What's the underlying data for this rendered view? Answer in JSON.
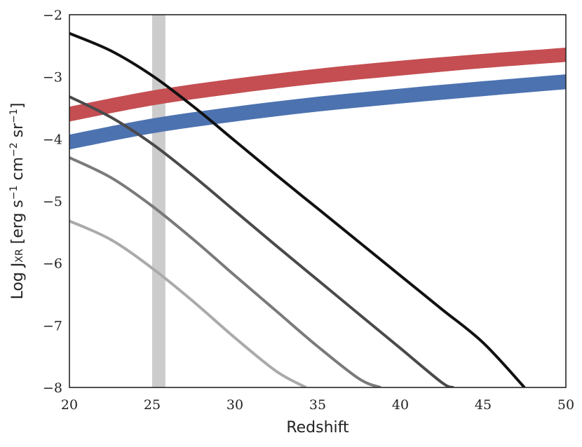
{
  "chart_data": {
    "type": "line",
    "title": "",
    "xlabel": "Redshift",
    "ylabel": {
      "prefix": "Log J",
      "sub": "XR",
      "units": " [erg s",
      "e1": "−1",
      "mid1": " cm",
      "e2": "−2",
      "mid2": " sr",
      "e3": "−1",
      "close": "]"
    },
    "xlim": [
      20,
      50
    ],
    "ylim": [
      -8,
      -2
    ],
    "xticks": [
      20,
      25,
      30,
      35,
      40,
      45,
      50
    ],
    "xtick_labels": [
      "20",
      "25",
      "30",
      "35",
      "40",
      "45",
      "50"
    ],
    "yticks": [
      -8,
      -7,
      -6,
      -5,
      -4,
      -3,
      -2
    ],
    "ytick_labels": [
      "−8",
      "−7",
      "−6",
      "−5",
      "−4",
      "−3",
      "−2"
    ],
    "grid": false,
    "shaded_region": {
      "x": [
        25.0,
        25.8
      ],
      "color": "#cccccc"
    },
    "bands": [
      {
        "color": "#c44e52",
        "x": [
          20,
          25,
          30,
          35,
          40,
          45,
          50
        ],
        "upper": [
          -3.48,
          -3.22,
          -3.03,
          -2.87,
          -2.74,
          -2.63,
          -2.53
        ],
        "lower": [
          -3.72,
          -3.46,
          -3.27,
          -3.11,
          -2.98,
          -2.86,
          -2.76
        ]
      },
      {
        "color": "#4c72b0",
        "x": [
          20,
          25,
          30,
          35,
          40,
          45,
          50
        ],
        "upper": [
          -3.93,
          -3.67,
          -3.48,
          -3.32,
          -3.19,
          -3.07,
          -2.96
        ],
        "lower": [
          -4.17,
          -3.91,
          -3.72,
          -3.56,
          -3.43,
          -3.31,
          -3.2
        ]
      }
    ],
    "series": [
      {
        "color": "#111111",
        "x": [
          20,
          22.5,
          25,
          27.5,
          30,
          32.5,
          35,
          37.5,
          40,
          42.5,
          45,
          47.5
        ],
        "y": [
          -2.3,
          -2.58,
          -2.98,
          -3.48,
          -4.03,
          -4.58,
          -5.12,
          -5.66,
          -6.2,
          -6.74,
          -7.28,
          -8.0
        ]
      },
      {
        "color": "#4a4a4a",
        "x": [
          20,
          22.5,
          25,
          27.5,
          30,
          32.5,
          35,
          37.5,
          40,
          42.5,
          43.2
        ],
        "y": [
          -3.32,
          -3.65,
          -4.08,
          -4.6,
          -5.16,
          -5.72,
          -6.27,
          -6.82,
          -7.37,
          -7.92,
          -8.0
        ]
      },
      {
        "color": "#7a7a7a",
        "x": [
          20,
          22.5,
          25,
          27.5,
          30,
          32.5,
          35,
          37.5,
          38.8
        ],
        "y": [
          -4.3,
          -4.62,
          -5.08,
          -5.62,
          -6.2,
          -6.77,
          -7.34,
          -7.86,
          -8.0
        ]
      },
      {
        "color": "#aaaaaa",
        "x": [
          20,
          22.5,
          25,
          27.5,
          30,
          32.5,
          34.3
        ],
        "y": [
          -5.32,
          -5.62,
          -6.08,
          -6.62,
          -7.2,
          -7.74,
          -8.0
        ]
      }
    ]
  }
}
